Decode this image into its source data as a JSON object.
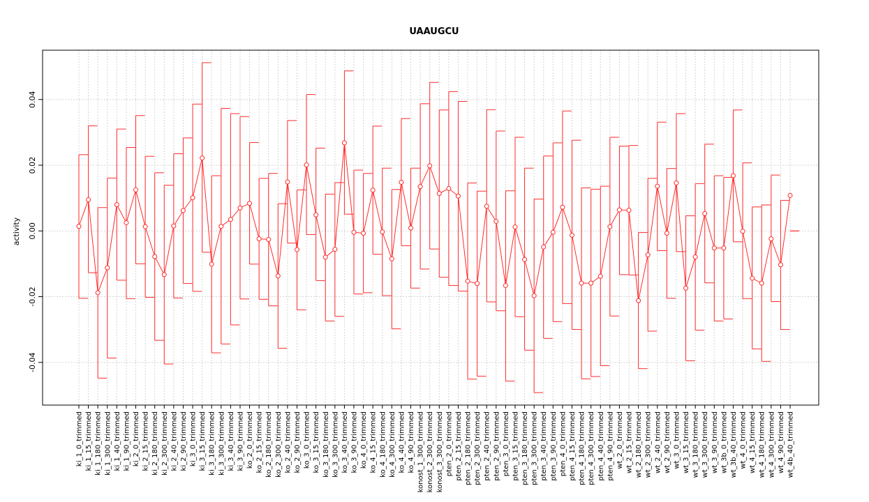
{
  "chart_data": {
    "type": "line",
    "title": "UAAUGCU",
    "xlabel": "",
    "ylabel": "activity",
    "ylim": [
      -0.053,
      0.055
    ],
    "yticks": [
      -0.04,
      -0.02,
      0.0,
      0.02,
      0.04
    ],
    "ytick_labels": [
      "-0.04",
      "-0.02",
      "0.00",
      "0.02",
      "0.04"
    ],
    "grid": true,
    "colors": {
      "series": "#ff2a2a",
      "grid": "#d3d3d3",
      "axis": "#000000"
    },
    "categories": [
      "ki_1_0_trimmed",
      "ki_1_15_trimmed",
      "ki_1_180_trimmed",
      "ki_1_300_trimmed",
      "ki_1_40_trimmed",
      "ki_1_90_trimmed",
      "ki_2_0_trimmed",
      "ki_2_15_trimmed",
      "ki_2_180_trimmed",
      "ki_2_300_trimmed",
      "ki_2_40_trimmed",
      "ki_2_90_trimmed",
      "ki_3_0_trimmed",
      "ki_3_15_trimmed",
      "ki_3_180_trimmed",
      "ki_3_300_trimmed",
      "ki_3_40_trimmed",
      "ki_3_90_trimmed",
      "ko_2_0_trimmed",
      "ko_2_15_trimmed",
      "ko_2_180_trimmed",
      "ko_2_300_trimmed",
      "ko_2_40_trimmed",
      "ko_2_90_trimmed",
      "ko_3_0_trimmed",
      "ko_3_15_trimmed",
      "ko_3_180_trimmed",
      "ko_3_300_trimmed",
      "ko_3_40_trimmed",
      "ko_3_90_trimmed",
      "ko_4_0_trimmed",
      "ko_4_15_trimmed",
      "ko_4_180_trimmed",
      "ko_4_300_trimmed",
      "ko_4_40_trimmed",
      "ko_4_90_trimmed",
      "konost_1_300_trimmed",
      "konost_2_300_trimmed",
      "konost_3_300_trimmed",
      "pten_2_0_trimmed",
      "pten_2_15_trimmed",
      "pten_2_180_trimmed",
      "pten_2_300_trimmed",
      "pten_2_40_trimmed",
      "pten_2_90_trimmed",
      "pten_3_0_trimmed",
      "pten_3_15_trimmed",
      "pten_3_180_trimmed",
      "pten_3_300_trimmed",
      "pten_3_40_trimmed",
      "pten_3_90_trimmed",
      "pten_4_0_trimmed",
      "pten_4_15_trimmed",
      "pten_4_180_trimmed",
      "pten_4_300_trimmed",
      "pten_4_40_trimmed",
      "pten_4_90_trimmed",
      "wt_2_0_trimmed",
      "wt_2_15_trimmed",
      "wt_2_180_trimmed",
      "wt_2_300_trimmed",
      "wt_2_40_trimmed",
      "wt_2_90_trimmed",
      "wt_3_0_trimmed",
      "wt_3_15_trimmed",
      "wt_3_180_trimmed",
      "wt_3_300_trimmed",
      "wt_3_90_trimmed",
      "wt_3b_0_trimmed",
      "wt_3b_40_trimmed",
      "wt_4_0_trimmed",
      "wt_4_15_trimmed",
      "wt_4_180_trimmed",
      "wt_4_300_trimmed",
      "wt_4_90_trimmed",
      "wt_4b_40_trimmed"
    ],
    "values": [
      0.0014,
      0.0095,
      -0.0188,
      -0.0112,
      0.008,
      0.0025,
      0.0125,
      0.0013,
      -0.0078,
      -0.0133,
      0.0015,
      0.0062,
      0.0101,
      0.0222,
      -0.0101,
      0.0014,
      0.0035,
      0.007,
      0.0084,
      -0.0024,
      -0.0026,
      -0.0137,
      0.0149,
      -0.0057,
      0.0201,
      0.0049,
      -0.008,
      -0.0056,
      0.0268,
      -0.0004,
      -0.0007,
      0.0124,
      -0.0003,
      -0.0085,
      0.0148,
      0.0009,
      0.0135,
      0.0198,
      0.0114,
      0.0129,
      0.0106,
      -0.0153,
      -0.016,
      0.0075,
      0.0029,
      -0.0166,
      0.0012,
      -0.0087,
      -0.0197,
      -0.0049,
      -0.0004,
      0.0072,
      -0.0013,
      -0.0159,
      -0.0159,
      -0.0138,
      0.0013,
      0.0064,
      0.0063,
      -0.0212,
      -0.0073,
      0.0136,
      -0.0007,
      0.0146,
      -0.0174,
      -0.0079,
      0.0053,
      -0.0052,
      -0.0052,
      0.0168,
      -0.0001,
      -0.0144,
      -0.0159,
      -0.0024,
      -0.0103,
      0.0108
    ],
    "upper": [
      0.0232,
      0.032,
      0.0071,
      0.0161,
      0.031,
      0.0254,
      0.0351,
      0.0227,
      0.0177,
      0.0139,
      0.0235,
      0.0283,
      0.0386,
      0.0512,
      0.0168,
      0.0373,
      0.0357,
      0.0348,
      0.0269,
      0.016,
      0.0175,
      0.0083,
      0.0336,
      0.0125,
      0.0415,
      0.0252,
      0.0112,
      0.0147,
      0.0487,
      0.0185,
      0.0175,
      0.0319,
      0.0191,
      0.0126,
      0.0342,
      0.0191,
      0.0387,
      0.0452,
      0.0368,
      0.0424,
      0.0394,
      0.0146,
      0.0121,
      0.0369,
      0.0304,
      0.0122,
      0.0285,
      0.0191,
      0.0097,
      0.0228,
      0.0268,
      0.0365,
      0.0276,
      0.0131,
      0.0127,
      0.0136,
      0.0285,
      0.0258,
      0.026,
      -0.0005,
      0.016,
      0.0331,
      0.019,
      0.0357,
      0.0046,
      0.0144,
      0.0264,
      0.0168,
      0.0163,
      0.0368,
      0.0207,
      0.0073,
      0.0079,
      0.017,
      0.0093,
      0.0
    ],
    "lower": [
      -0.0205,
      -0.0127,
      -0.0448,
      -0.0387,
      -0.015,
      -0.0206,
      -0.01,
      -0.0202,
      -0.0333,
      -0.0405,
      -0.0204,
      -0.016,
      -0.0184,
      -0.0065,
      -0.0371,
      -0.0344,
      -0.0286,
      -0.0207,
      -0.0101,
      -0.0208,
      -0.0228,
      -0.0357,
      -0.0037,
      -0.024,
      -0.0011,
      -0.0151,
      -0.0274,
      -0.026,
      0.0051,
      -0.0192,
      -0.0188,
      -0.0071,
      -0.0197,
      -0.0298,
      -0.0045,
      -0.0174,
      -0.0116,
      -0.0055,
      -0.0141,
      -0.0166,
      -0.0183,
      -0.0451,
      -0.0442,
      -0.0216,
      -0.0243,
      -0.0457,
      -0.0261,
      -0.0363,
      -0.0492,
      -0.0327,
      -0.0276,
      -0.0221,
      -0.03,
      -0.045,
      -0.0443,
      -0.041,
      -0.0259,
      -0.0133,
      -0.0134,
      -0.0419,
      -0.0305,
      -0.006,
      -0.0205,
      -0.0063,
      -0.0395,
      -0.0302,
      -0.0158,
      -0.0274,
      -0.0268,
      -0.0033,
      -0.0206,
      -0.0359,
      -0.0397,
      -0.0215,
      -0.03,
      0.0
    ]
  }
}
